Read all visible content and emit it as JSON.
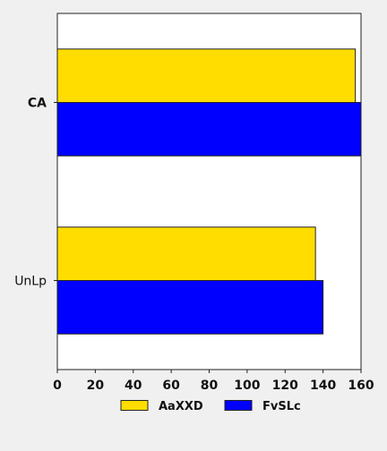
{
  "chart_data": {
    "type": "bar",
    "orientation": "horizontal",
    "categories": [
      "CA",
      "UnLp"
    ],
    "series": [
      {
        "name": "AaXXD",
        "values": [
          157,
          136
        ],
        "color": "#ffdd00"
      },
      {
        "name": "FvSLc",
        "values": [
          160,
          140
        ],
        "color": "#0000ff"
      }
    ],
    "xlim": [
      0,
      160
    ],
    "xticks": [
      "0",
      "20",
      "40",
      "60",
      "80",
      "100",
      "120",
      "140",
      "160"
    ],
    "title": "",
    "xlabel": "",
    "ylabel": "",
    "legend_position": "bottom",
    "grid": false
  }
}
